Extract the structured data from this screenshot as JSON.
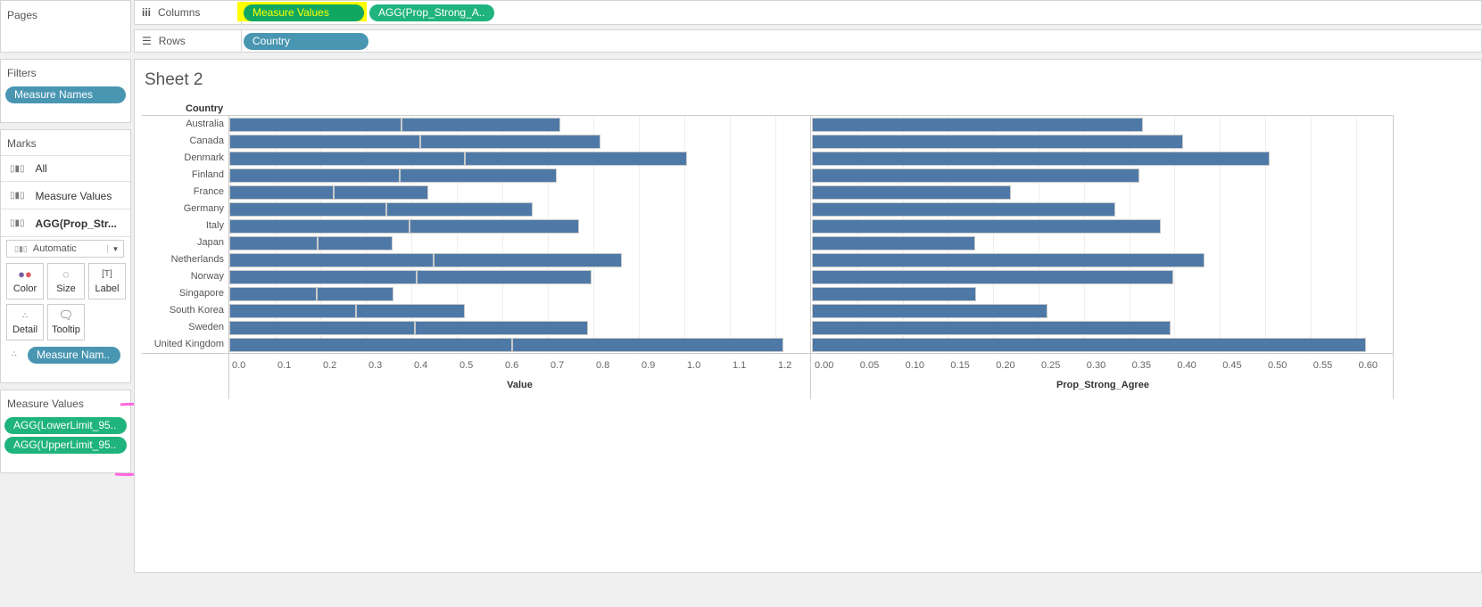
{
  "left": {
    "pages_title": "Pages",
    "filters_title": "Filters",
    "filters": [
      "Measure Names"
    ],
    "marks_title": "Marks",
    "marks_cards": [
      "All",
      "Measure Values",
      "AGG(Prop_Str..."
    ],
    "mark_type": "Automatic",
    "mark_buttons": [
      "Color",
      "Size",
      "Label",
      "Detail",
      "Tooltip"
    ],
    "detail_pill": "Measure Nam..",
    "measure_values_title": "Measure Values",
    "measure_values": [
      "AGG(LowerLimit_95..",
      "AGG(UpperLimit_95.."
    ]
  },
  "shelves": {
    "columns_label": "Columns",
    "columns": [
      "Measure Values",
      "AGG(Prop_Strong_A.."
    ],
    "rows_label": "Rows",
    "rows": [
      "Country"
    ]
  },
  "sheet_title": "Sheet 2",
  "colors": {
    "bar": "#4e79a7",
    "highlight": "#ffff00",
    "annotation": "#ff66dd"
  },
  "chart_data": [
    {
      "type": "bar",
      "orientation": "horizontal",
      "stacked": true,
      "row_header": "Country",
      "categories": [
        "Australia",
        "Canada",
        "Denmark",
        "Finland",
        "France",
        "Germany",
        "Italy",
        "Japan",
        "Netherlands",
        "Norway",
        "Singapore",
        "South Korea",
        "Sweden",
        "United Kingdom"
      ],
      "series": [
        {
          "name": "AGG(LowerLimit_95..",
          "values": [
            0.378,
            0.42,
            0.518,
            0.375,
            0.229,
            0.345,
            0.396,
            0.194,
            0.449,
            0.412,
            0.192,
            0.278,
            0.408,
            0.622
          ]
        },
        {
          "name": "AGG(UpperLimit_95..",
          "values": [
            0.349,
            0.396,
            0.488,
            0.345,
            0.208,
            0.322,
            0.373,
            0.165,
            0.414,
            0.384,
            0.169,
            0.24,
            0.38,
            0.596
          ]
        }
      ],
      "xlabel": "Value",
      "xlim": [
        0,
        1.27
      ],
      "ticks": [
        "0.0",
        "0.1",
        "0.2",
        "0.3",
        "0.4",
        "0.5",
        "0.6",
        "0.7",
        "0.8",
        "0.9",
        "1.0",
        "1.1",
        "1.2"
      ],
      "tick_values": [
        0,
        0.1,
        0.2,
        0.3,
        0.4,
        0.5,
        0.6,
        0.7,
        0.8,
        0.9,
        1.0,
        1.1,
        1.2
      ]
    },
    {
      "type": "bar",
      "orientation": "horizontal",
      "categories": [
        "Australia",
        "Canada",
        "Denmark",
        "Finland",
        "France",
        "Germany",
        "Italy",
        "Japan",
        "Netherlands",
        "Norway",
        "Singapore",
        "South Korea",
        "Sweden",
        "United Kingdom"
      ],
      "values": [
        0.365,
        0.409,
        0.505,
        0.361,
        0.219,
        0.335,
        0.385,
        0.18,
        0.433,
        0.399,
        0.181,
        0.26,
        0.396,
        0.611
      ],
      "xlabel": "Prop_Strong_Agree",
      "xlim": [
        0,
        0.64
      ],
      "ticks": [
        "0.00",
        "0.05",
        "0.10",
        "0.15",
        "0.20",
        "0.25",
        "0.30",
        "0.35",
        "0.40",
        "0.45",
        "0.50",
        "0.55",
        "0.60"
      ],
      "tick_values": [
        0,
        0.05,
        0.1,
        0.15,
        0.2,
        0.25,
        0.3,
        0.35,
        0.4,
        0.45,
        0.5,
        0.55,
        0.6
      ]
    }
  ]
}
